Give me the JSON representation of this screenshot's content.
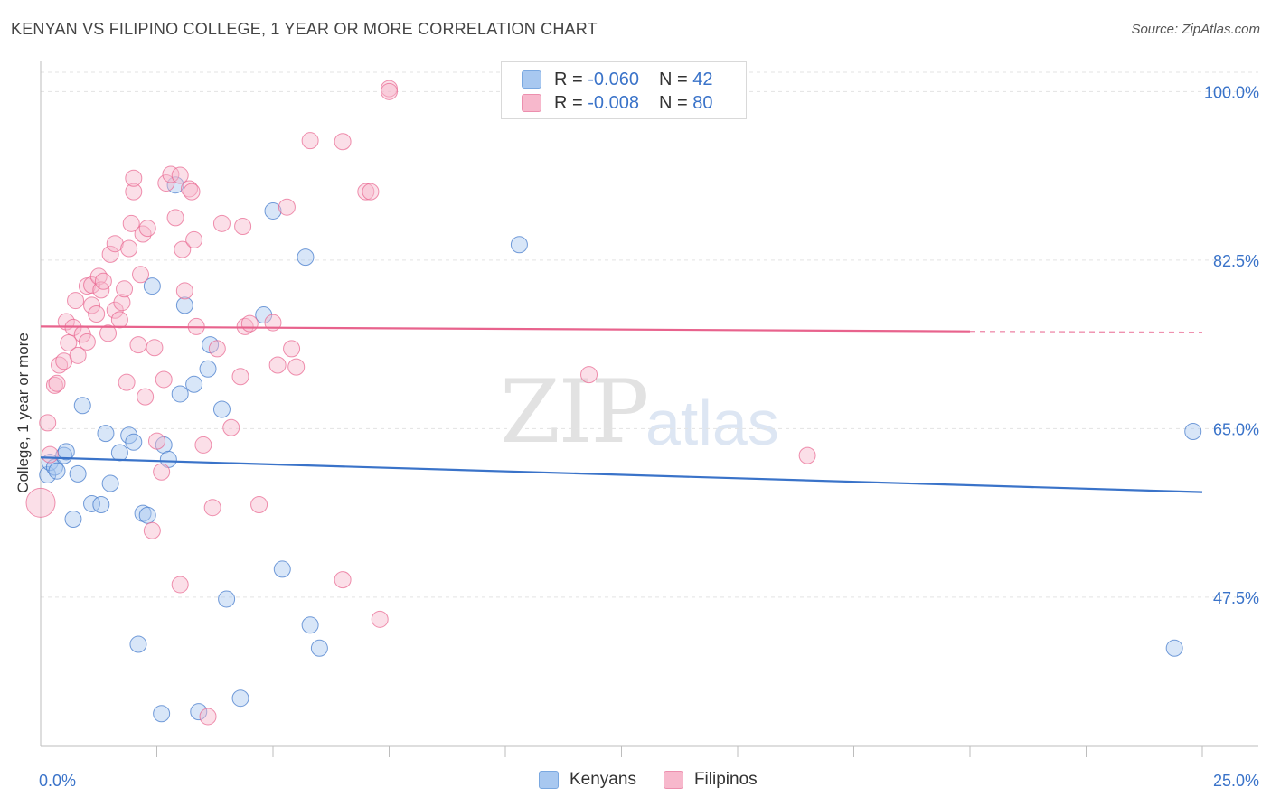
{
  "header": {
    "title": "KENYAN VS FILIPINO COLLEGE, 1 YEAR OR MORE CORRELATION CHART",
    "source": "Source: ZipAtlas.com"
  },
  "watermark": {
    "zip": "ZIP",
    "atlas": "atlas"
  },
  "legend": {
    "rows": [
      {
        "r_label": "R = ",
        "r_value": "-0.060",
        "n_label": "N = ",
        "n_value": "42",
        "color": "#a8c8f0"
      },
      {
        "r_label": "R = ",
        "r_value": "-0.008",
        "n_label": "N = ",
        "n_value": "80",
        "color": "#f7b8cc"
      }
    ]
  },
  "bottom_legend": {
    "kenyans": "Kenyans",
    "filipinos": "Filipinos"
  },
  "chart_data": {
    "type": "scatter",
    "title": "KENYAN VS FILIPINO COLLEGE, 1 YEAR OR MORE CORRELATION CHART",
    "xlabel": "",
    "ylabel": "College, 1 year or more",
    "xlim": [
      0,
      25
    ],
    "ylim": [
      32,
      102
    ],
    "x_tick_labels": [
      "0.0%",
      "25.0%"
    ],
    "y_ticks": [
      47.5,
      65.0,
      82.5,
      100.0
    ],
    "y_tick_labels": [
      "47.5%",
      "65.0%",
      "82.5%",
      "100.0%"
    ],
    "series": [
      {
        "name": "Kenyans",
        "color": "#3a73c9",
        "fill": "#a8c8f0",
        "trend": {
          "x": [
            0,
            25
          ],
          "y": [
            62.0,
            58.4
          ],
          "dashed_after": null
        },
        "points": [
          [
            0.15,
            60.2
          ],
          [
            0.2,
            61.5
          ],
          [
            0.3,
            61.0
          ],
          [
            0.35,
            60.6
          ],
          [
            0.5,
            62.2
          ],
          [
            0.55,
            62.6
          ],
          [
            0.7,
            55.6
          ],
          [
            0.8,
            60.3
          ],
          [
            0.9,
            67.4
          ],
          [
            1.1,
            57.2
          ],
          [
            1.3,
            57.1
          ],
          [
            1.4,
            64.5
          ],
          [
            1.5,
            59.3
          ],
          [
            1.7,
            62.5
          ],
          [
            1.9,
            64.3
          ],
          [
            2.0,
            63.6
          ],
          [
            2.1,
            42.6
          ],
          [
            2.2,
            56.2
          ],
          [
            2.3,
            56.0
          ],
          [
            2.4,
            79.8
          ],
          [
            2.6,
            35.4
          ],
          [
            2.65,
            63.3
          ],
          [
            2.75,
            61.8
          ],
          [
            2.9,
            90.3
          ],
          [
            3.0,
            68.6
          ],
          [
            3.1,
            77.8
          ],
          [
            3.3,
            69.6
          ],
          [
            3.4,
            35.6
          ],
          [
            3.6,
            71.2
          ],
          [
            3.65,
            73.7
          ],
          [
            3.9,
            67.0
          ],
          [
            4.0,
            47.3
          ],
          [
            4.3,
            37.0
          ],
          [
            4.8,
            76.8
          ],
          [
            5.0,
            87.6
          ],
          [
            5.2,
            50.4
          ],
          [
            5.7,
            82.8
          ],
          [
            5.8,
            44.6
          ],
          [
            6.0,
            42.2
          ],
          [
            10.3,
            84.1
          ],
          [
            24.4,
            42.2
          ],
          [
            24.8,
            64.7
          ]
        ]
      },
      {
        "name": "Filipinos",
        "color": "#e8638d",
        "fill": "#f7b8cc",
        "trend": {
          "x": [
            0,
            20,
            25
          ],
          "y": [
            75.6,
            75.1,
            75.0
          ],
          "dashed_after": 20
        },
        "points": [
          [
            0.0,
            57.3
          ],
          [
            0.15,
            65.6
          ],
          [
            0.2,
            62.3
          ],
          [
            0.3,
            69.5
          ],
          [
            0.35,
            69.7
          ],
          [
            0.4,
            71.6
          ],
          [
            0.5,
            72.0
          ],
          [
            0.55,
            76.1
          ],
          [
            0.6,
            73.9
          ],
          [
            0.7,
            75.5
          ],
          [
            0.75,
            78.3
          ],
          [
            0.8,
            72.6
          ],
          [
            0.9,
            74.8
          ],
          [
            1.0,
            79.8
          ],
          [
            1.0,
            74.0
          ],
          [
            1.1,
            77.8
          ],
          [
            1.1,
            79.9
          ],
          [
            1.2,
            76.9
          ],
          [
            1.25,
            80.8
          ],
          [
            1.3,
            79.4
          ],
          [
            1.35,
            80.3
          ],
          [
            1.45,
            74.9
          ],
          [
            1.5,
            83.1
          ],
          [
            1.6,
            84.2
          ],
          [
            1.6,
            77.3
          ],
          [
            1.7,
            76.3
          ],
          [
            1.75,
            78.1
          ],
          [
            1.8,
            79.5
          ],
          [
            1.85,
            69.8
          ],
          [
            1.9,
            83.7
          ],
          [
            1.95,
            86.3
          ],
          [
            2.0,
            89.6
          ],
          [
            2.1,
            73.7
          ],
          [
            2.15,
            81.0
          ],
          [
            2.2,
            85.2
          ],
          [
            2.25,
            68.3
          ],
          [
            2.3,
            85.8
          ],
          [
            2.4,
            54.4
          ],
          [
            2.45,
            73.4
          ],
          [
            2.5,
            63.7
          ],
          [
            2.6,
            60.5
          ],
          [
            2.65,
            70.1
          ],
          [
            2.7,
            90.5
          ],
          [
            2.8,
            91.4
          ],
          [
            2.9,
            86.9
          ],
          [
            3.0,
            91.3
          ],
          [
            3.05,
            83.6
          ],
          [
            3.1,
            79.3
          ],
          [
            3.2,
            89.9
          ],
          [
            3.25,
            89.6
          ],
          [
            3.3,
            84.6
          ],
          [
            3.35,
            75.6
          ],
          [
            3.5,
            63.3
          ],
          [
            3.6,
            35.1
          ],
          [
            3.7,
            56.8
          ],
          [
            3.8,
            73.3
          ],
          [
            3.9,
            86.3
          ],
          [
            4.1,
            65.1
          ],
          [
            4.3,
            70.4
          ],
          [
            4.35,
            86.0
          ],
          [
            4.4,
            75.6
          ],
          [
            4.5,
            75.9
          ],
          [
            4.7,
            57.1
          ],
          [
            5.0,
            76.0
          ],
          [
            5.1,
            71.6
          ],
          [
            5.3,
            88.0
          ],
          [
            5.4,
            73.3
          ],
          [
            5.5,
            71.4
          ],
          [
            5.8,
            94.9
          ],
          [
            6.5,
            94.8
          ],
          [
            6.5,
            49.3
          ],
          [
            7.0,
            89.6
          ],
          [
            7.1,
            89.6
          ],
          [
            7.3,
            45.2
          ],
          [
            7.5,
            100.3
          ],
          [
            7.5,
            100.0
          ],
          [
            11.8,
            70.6
          ],
          [
            16.5,
            62.2
          ],
          [
            3.0,
            48.8
          ],
          [
            2.0,
            91.0
          ]
        ]
      }
    ]
  }
}
